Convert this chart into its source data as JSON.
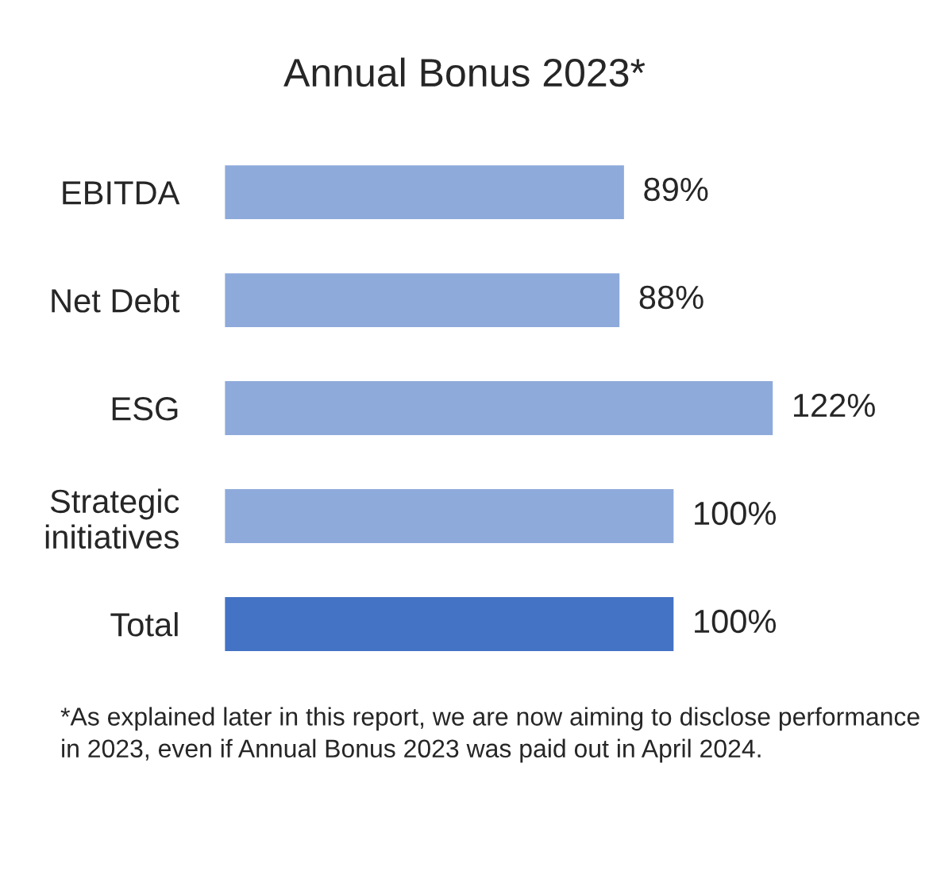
{
  "chart_data": {
    "type": "bar",
    "orientation": "horizontal",
    "title": "Annual Bonus 2023*",
    "categories": [
      "EBITDA",
      "Net Debt",
      "ESG",
      "Strategic initiatives",
      "Total"
    ],
    "values": [
      89,
      88,
      122,
      100,
      100
    ],
    "colors": [
      "#8eaadb",
      "#8eaadb",
      "#8eaadb",
      "#8eaadb",
      "#4472c4"
    ],
    "value_labels": [
      "89%",
      "88%",
      "122%",
      "100%",
      "100%"
    ],
    "grid": false,
    "legend": false,
    "annotations": [
      "*As explained later in this report, we are now aiming to disclose performance in 2023, even if Annual Bonus 2023 was paid out in April 2024."
    ]
  }
}
